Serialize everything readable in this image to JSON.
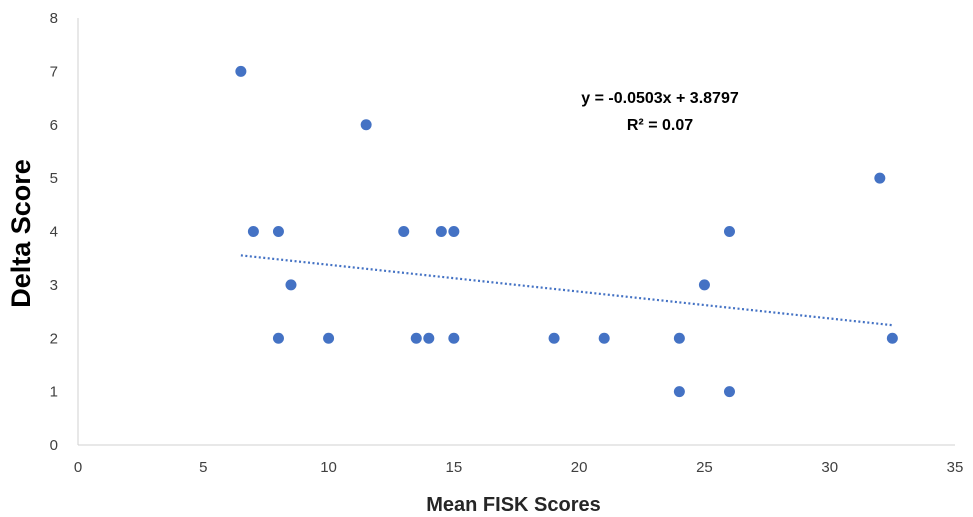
{
  "chart_data": {
    "type": "scatter",
    "title": "",
    "xlabel": "Mean FISK Scores",
    "ylabel": "Delta Score",
    "xlim": [
      0,
      35
    ],
    "ylim": [
      0,
      8
    ],
    "x_ticks": [
      0,
      5,
      10,
      15,
      20,
      25,
      30,
      35
    ],
    "y_ticks": [
      0,
      1,
      2,
      3,
      4,
      5,
      6,
      7,
      8
    ],
    "grid": false,
    "legend": "none",
    "marker_color": "#4472C4",
    "points": [
      {
        "x": 6.5,
        "y": 7
      },
      {
        "x": 7,
        "y": 4
      },
      {
        "x": 8,
        "y": 4
      },
      {
        "x": 8,
        "y": 2
      },
      {
        "x": 8.5,
        "y": 3
      },
      {
        "x": 10,
        "y": 2
      },
      {
        "x": 11.5,
        "y": 6
      },
      {
        "x": 13,
        "y": 4
      },
      {
        "x": 13.5,
        "y": 2
      },
      {
        "x": 14,
        "y": 2
      },
      {
        "x": 14.5,
        "y": 4
      },
      {
        "x": 15,
        "y": 4
      },
      {
        "x": 15,
        "y": 2
      },
      {
        "x": 19,
        "y": 2
      },
      {
        "x": 21,
        "y": 2
      },
      {
        "x": 24,
        "y": 2
      },
      {
        "x": 24,
        "y": 1
      },
      {
        "x": 25,
        "y": 3
      },
      {
        "x": 26,
        "y": 4
      },
      {
        "x": 26,
        "y": 1
      },
      {
        "x": 32,
        "y": 5
      },
      {
        "x": 32.5,
        "y": 2
      }
    ],
    "trendline": {
      "type": "linear",
      "slope": -0.0503,
      "intercept": 3.8797,
      "x_range": [
        6.5,
        32.5
      ],
      "style": "dotted",
      "color": "#4472C4"
    },
    "annotations": {
      "equation": "y = -0.0503x + 3.8797",
      "r_squared": "R² = 0.07"
    }
  }
}
